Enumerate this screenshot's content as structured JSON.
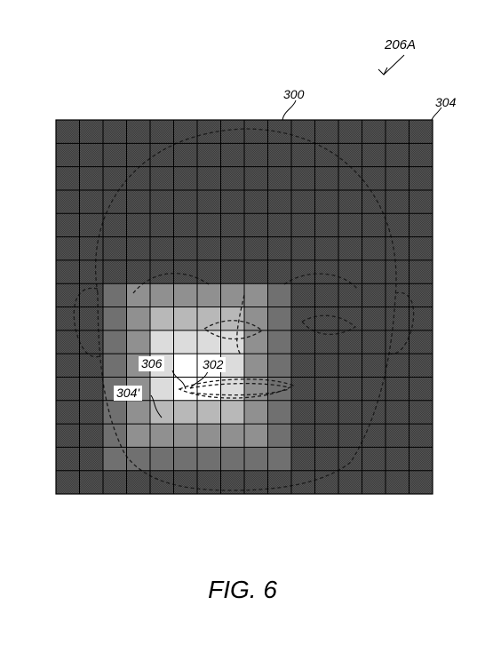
{
  "figure": {
    "number_label": "206A",
    "labels": {
      "image": "300",
      "grid": "304",
      "region": "302",
      "point": "306",
      "cell": "304'"
    },
    "caption": "FIG. 6"
  }
}
